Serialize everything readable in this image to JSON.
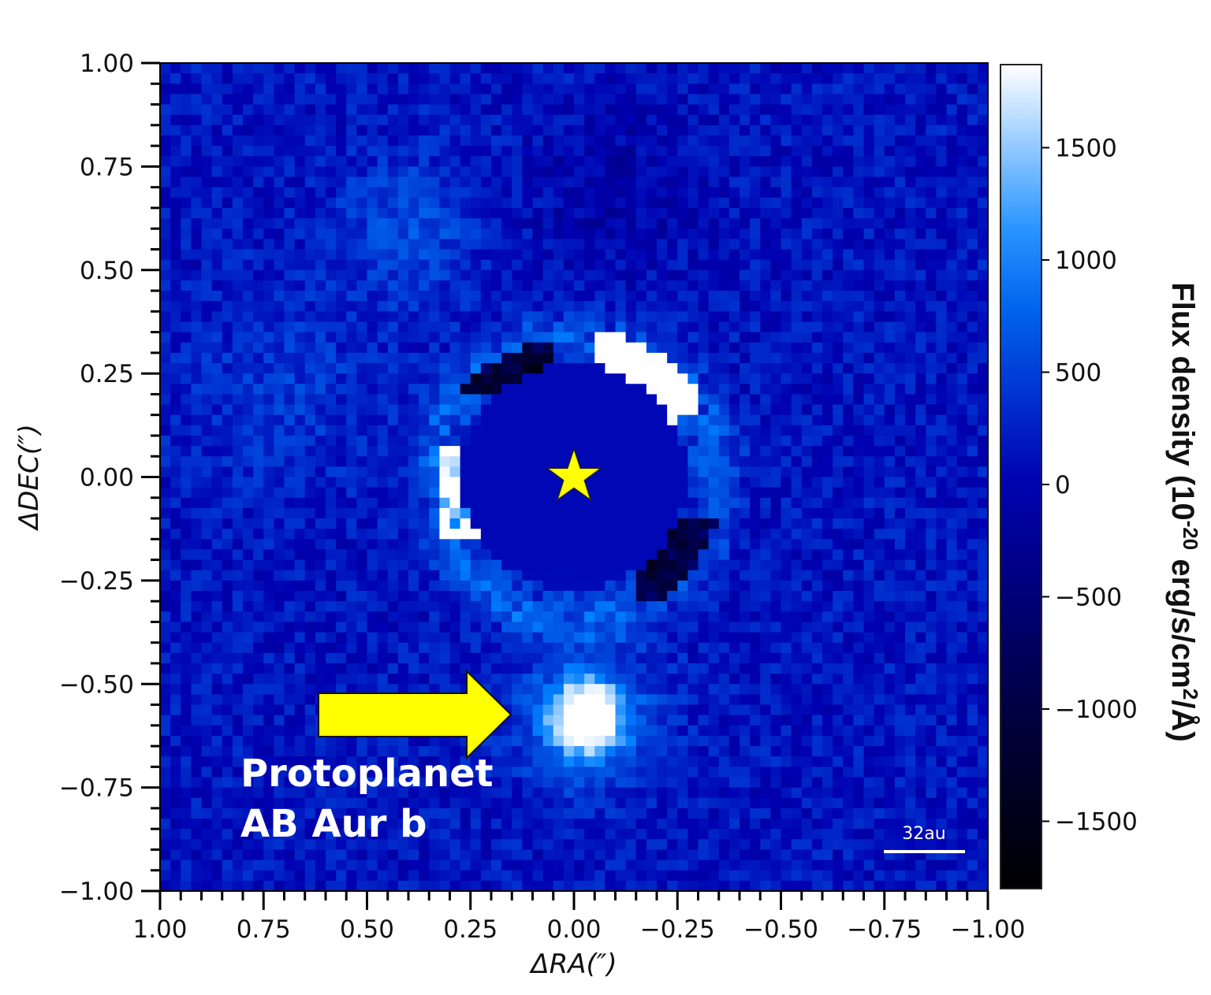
{
  "chart_data": {
    "type": "heatmap",
    "xlabel": "ΔRA(″)",
    "ylabel": "ΔDEC(″)",
    "xlim": [
      1.0,
      -1.0
    ],
    "ylim": [
      -1.0,
      1.0
    ],
    "x_ticks": [
      "1.00",
      "0.75",
      "0.50",
      "0.25",
      "0.00",
      "−0.25",
      "−0.50",
      "−0.75",
      "−1.00"
    ],
    "y_ticks": [
      "1.00",
      "0.75",
      "0.50",
      "0.25",
      "0.00",
      "−0.25",
      "−0.50",
      "−0.75",
      "−1.00"
    ],
    "colorbar": {
      "label_main": "Flux density (10",
      "label_exp": "-20",
      "label_mid": " erg/s/cm",
      "label_exp2": "2",
      "label_end": "/Å)",
      "ticks": [
        "1500",
        "1000",
        "500",
        "0",
        "−500",
        "−1000",
        "−1500"
      ],
      "tick_values": [
        1500,
        1000,
        500,
        0,
        -500,
        -1000,
        -1500
      ],
      "range": [
        -1800,
        1870
      ],
      "colormap": [
        "#000000",
        "#00004a",
        "#0000b0",
        "#0080ff",
        "#ffffff"
      ]
    },
    "features": {
      "star": {
        "ra": 0.0,
        "dec": 0.0,
        "color": "#ffff00"
      },
      "protoplanet": {
        "ra": -0.03,
        "dec": -0.58
      },
      "mask_radius": 0.27
    },
    "grid": false
  },
  "annotations": {
    "label_line1": "Protoplanet",
    "label_line2": "AB Aur b",
    "arrow_color": "#ffff00",
    "scale_bar": "32au"
  }
}
